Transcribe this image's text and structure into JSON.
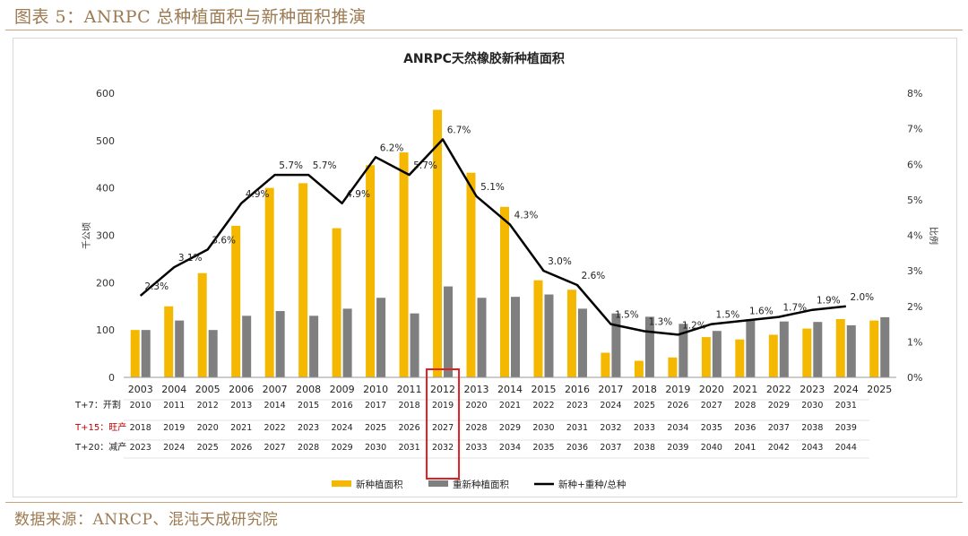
{
  "figure_title": "图表 5：ANRPC 总种植面积与新种面积推演",
  "source": "数据来源：ANRCP、混沌天成研究院",
  "colors": {
    "bar_new": "#f5b800",
    "bar_replant": "#7f7f7f",
    "line": "#000000",
    "highlight": "#e02020",
    "t15_label": "#c00000"
  },
  "chart_data": {
    "type": "bar",
    "title": "ANRPC天然橡胶新种植面积",
    "ylabel": "千公顷",
    "y2label": "比例",
    "ylim": [
      0,
      600
    ],
    "y2lim": [
      0,
      8
    ],
    "yticks": [
      "0",
      "100",
      "200",
      "300",
      "400",
      "500",
      "600"
    ],
    "y2ticks": [
      "0%",
      "1%",
      "2%",
      "3%",
      "4%",
      "5%",
      "6%",
      "7%",
      "8%"
    ],
    "categories": [
      "2003",
      "2004",
      "2005",
      "2006",
      "2007",
      "2008",
      "2009",
      "2010",
      "2011",
      "2012",
      "2013",
      "2014",
      "2015",
      "2016",
      "2017",
      "2018",
      "2019",
      "2020",
      "2021",
      "2022",
      "2023",
      "2024",
      "2025"
    ],
    "series": [
      {
        "name": "新种植面积",
        "kind": "bar",
        "values": [
          100,
          150,
          220,
          320,
          400,
          410,
          315,
          448,
          475,
          565,
          432,
          360,
          205,
          185,
          52,
          35,
          42,
          85,
          80,
          90,
          103,
          123,
          120
        ]
      },
      {
        "name": "重新种植面积",
        "kind": "bar",
        "values": [
          100,
          120,
          100,
          130,
          140,
          130,
          145,
          168,
          135,
          192,
          168,
          170,
          175,
          145,
          135,
          128,
          113,
          98,
          123,
          118,
          117,
          110,
          127
        ]
      },
      {
        "name": "新种+重种/总种",
        "kind": "line",
        "values": [
          2.3,
          3.1,
          3.6,
          4.9,
          5.7,
          5.7,
          4.9,
          6.2,
          5.7,
          6.7,
          5.1,
          4.3,
          3.0,
          2.6,
          1.5,
          1.3,
          1.2,
          1.5,
          1.6,
          1.7,
          1.9,
          2.0,
          null
        ],
        "labels": [
          "2.3%",
          "3.1%",
          "3.6%",
          "4.9%",
          "5.7%",
          "5.7%",
          "4.9%",
          "6.2%",
          "5.7%",
          "6.7%",
          "5.1%",
          "4.3%",
          "3.0%",
          "2.6%",
          "1.5%",
          "1.3%",
          "1.2%",
          "1.5%",
          "1.6%",
          "1.7%",
          "1.9%",
          "2.0%",
          ""
        ]
      }
    ],
    "table_rows": [
      {
        "label": "T+7：开割",
        "emph": false,
        "values": [
          "2010",
          "2011",
          "2012",
          "2013",
          "2014",
          "2015",
          "2016",
          "2017",
          "2018",
          "2019",
          "2020",
          "2021",
          "2022",
          "2023",
          "2024",
          "2025",
          "2026",
          "2027",
          "2028",
          "2029",
          "2030",
          "2031",
          ""
        ]
      },
      {
        "label": "T+15：旺产",
        "emph": true,
        "values": [
          "2018",
          "2019",
          "2020",
          "2021",
          "2022",
          "2023",
          "2024",
          "2025",
          "2026",
          "2027",
          "2028",
          "2029",
          "2030",
          "2031",
          "2032",
          "2033",
          "2034",
          "2035",
          "2036",
          "2037",
          "2038",
          "2039",
          ""
        ]
      },
      {
        "label": "T+20：减产",
        "emph": false,
        "values": [
          "2023",
          "2024",
          "2025",
          "2026",
          "2027",
          "2028",
          "2029",
          "2030",
          "2031",
          "2032",
          "2033",
          "2034",
          "2035",
          "2036",
          "2037",
          "2038",
          "2039",
          "2040",
          "2041",
          "2042",
          "2043",
          "2044",
          ""
        ]
      }
    ],
    "highlight_category": "2012",
    "legend": [
      "新种植面积",
      "重新种植面积",
      "新种+重种/总种"
    ],
    "legend_position": "bottom"
  }
}
